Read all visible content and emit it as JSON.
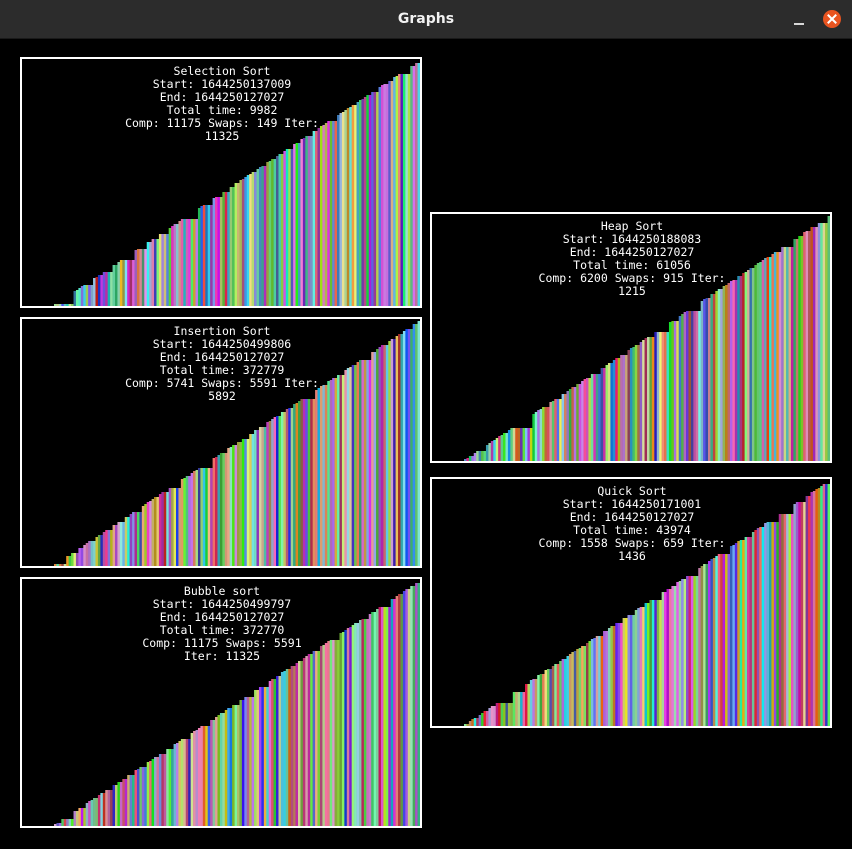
{
  "window": {
    "title": "Graphs"
  },
  "panels": [
    {
      "name": "Selection Sort",
      "start": "Start: 1644250137009",
      "end": "End: 1644250127027",
      "total": "Total time: 9982",
      "stats": "Comp: 11175 Swaps: 149 Iter: 11325",
      "bars": 150
    },
    {
      "name": "Insertion Sort",
      "start": "Start: 1644250499806",
      "end": "End: 1644250127027",
      "total": "Total time: 372779",
      "stats": "Comp: 5741 Swaps: 5591 Iter: 5892",
      "bars": 150
    },
    {
      "name": "Bubble sort",
      "start": "Start: 1644250499797",
      "end": "End: 1644250127027",
      "total": "Total time: 372770",
      "stats": "Comp: 11175 Swaps: 5591 Iter: 11325",
      "bars": 150
    },
    {
      "name": "Heap Sort",
      "start": "Start: 1644250188083",
      "end": "End: 1644250127027",
      "total": "Total time: 61056",
      "stats": "Comp: 6200 Swaps: 915 Iter: 1215",
      "bars": 150
    },
    {
      "name": "Quick Sort",
      "start": "Start: 1644250171001",
      "end": "End: 1644250127027",
      "total": "Total time: 43974",
      "stats": "Comp: 1558 Swaps: 659 Iter: 1436",
      "bars": 150
    }
  ]
}
